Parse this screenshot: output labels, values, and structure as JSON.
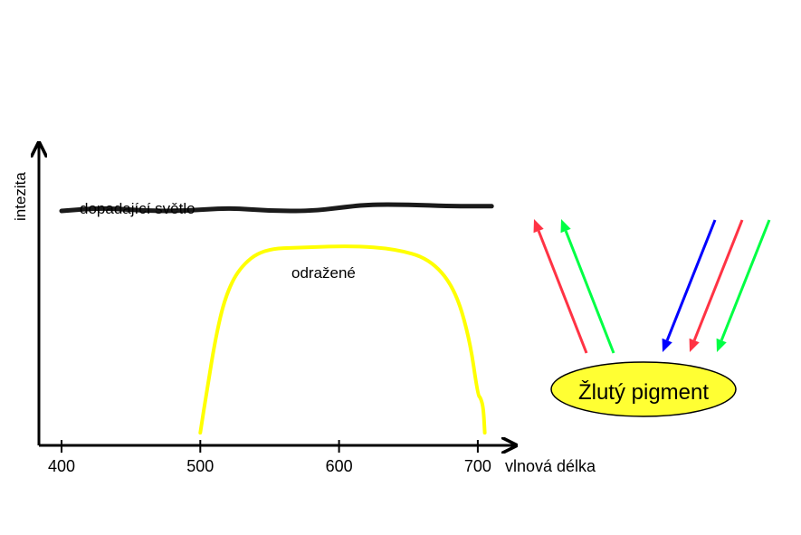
{
  "chart_data": {
    "type": "line",
    "ylabel": "intezita",
    "xlabel": "vlnová délka",
    "x_ticks": [
      400,
      500,
      600,
      700
    ],
    "xlim": [
      380,
      720
    ],
    "ylim": [
      0,
      1
    ],
    "series": [
      {
        "name": "dopadající světlo",
        "color": "#1a1a1a",
        "x": [
          400,
          430,
          460,
          490,
          520,
          550,
          580,
          600,
          620,
          650,
          680,
          700,
          710
        ],
        "y": [
          0.74,
          0.75,
          0.74,
          0.74,
          0.75,
          0.74,
          0.74,
          0.75,
          0.76,
          0.76,
          0.755,
          0.755,
          0.755
        ]
      },
      {
        "name": "odražené",
        "color": "#ffff00",
        "x": [
          500,
          505,
          511,
          518,
          528,
          545,
          575,
          610,
          640,
          665,
          683,
          694,
          700,
          702,
          704,
          705
        ],
        "y": [
          0.04,
          0.18,
          0.34,
          0.47,
          0.56,
          0.62,
          0.625,
          0.63,
          0.62,
          0.59,
          0.5,
          0.34,
          0.16,
          0.15,
          0.12,
          0.04
        ]
      }
    ]
  },
  "diagram": {
    "pigment_label": "Žlutý pigment",
    "pigment_color": "#ffff33",
    "incoming_arrows": [
      {
        "color": "#0000ff"
      },
      {
        "color": "#ff3344"
      },
      {
        "color": "#00ff44"
      }
    ],
    "reflected_arrows": [
      {
        "color": "#ff3344"
      },
      {
        "color": "#00ff44"
      }
    ]
  }
}
